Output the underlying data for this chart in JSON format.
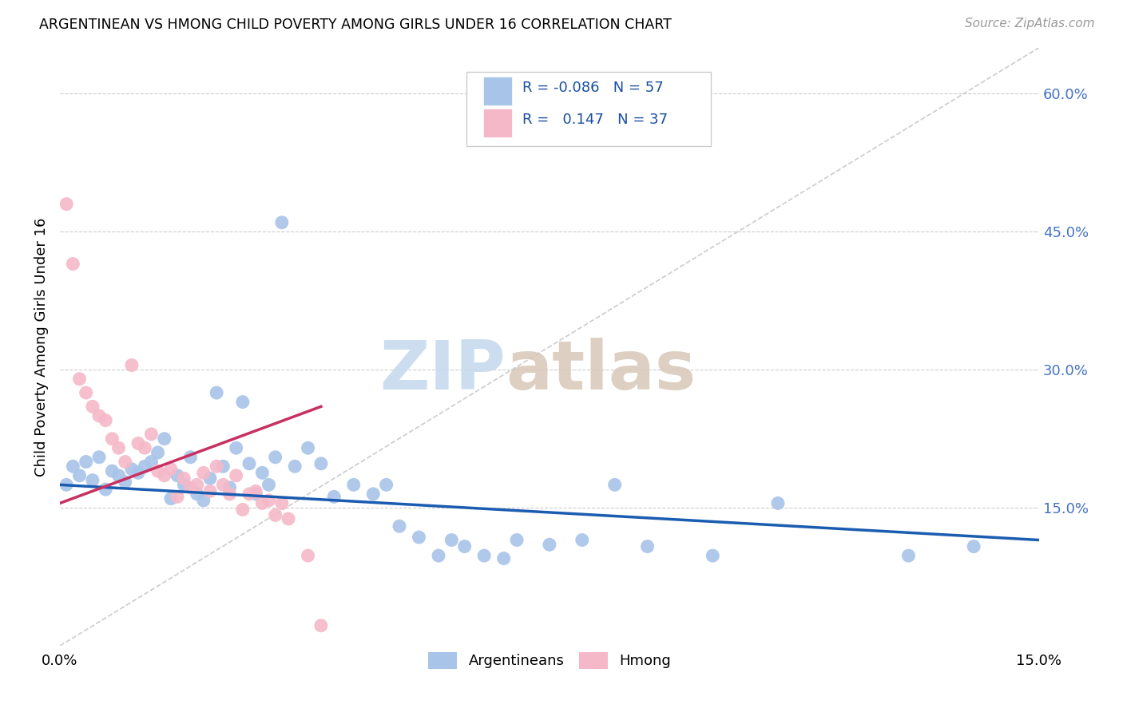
{
  "title": "ARGENTINEAN VS HMONG CHILD POVERTY AMONG GIRLS UNDER 16 CORRELATION CHART",
  "source": "Source: ZipAtlas.com",
  "ylabel": "Child Poverty Among Girls Under 16",
  "xlim": [
    0.0,
    0.15
  ],
  "ylim": [
    0.0,
    0.65
  ],
  "blue_color": "#A8C4E8",
  "pink_color": "#F5B8C8",
  "blue_line_color": "#1A5CB0",
  "pink_line_color": "#C83060",
  "diagonal_color": "#CCCCCC",
  "background_color": "#FFFFFF",
  "watermark_zip": "ZIP",
  "watermark_atlas": "atlas",
  "argentinean_x": [
    0.001,
    0.002,
    0.003,
    0.004,
    0.005,
    0.006,
    0.007,
    0.008,
    0.009,
    0.01,
    0.011,
    0.012,
    0.013,
    0.014,
    0.015,
    0.016,
    0.017,
    0.018,
    0.019,
    0.02,
    0.021,
    0.022,
    0.023,
    0.024,
    0.025,
    0.026,
    0.027,
    0.028,
    0.029,
    0.03,
    0.031,
    0.032,
    0.033,
    0.034,
    0.036,
    0.038,
    0.04,
    0.042,
    0.045,
    0.048,
    0.05,
    0.052,
    0.055,
    0.058,
    0.06,
    0.062,
    0.065,
    0.068,
    0.07,
    0.075,
    0.08,
    0.085,
    0.09,
    0.1,
    0.11,
    0.13,
    0.14
  ],
  "argentinean_y": [
    0.175,
    0.195,
    0.185,
    0.2,
    0.18,
    0.205,
    0.17,
    0.19,
    0.185,
    0.178,
    0.192,
    0.188,
    0.195,
    0.2,
    0.21,
    0.225,
    0.16,
    0.185,
    0.175,
    0.205,
    0.165,
    0.158,
    0.182,
    0.275,
    0.195,
    0.172,
    0.215,
    0.265,
    0.198,
    0.165,
    0.188,
    0.175,
    0.205,
    0.46,
    0.195,
    0.215,
    0.198,
    0.162,
    0.175,
    0.165,
    0.175,
    0.13,
    0.118,
    0.098,
    0.115,
    0.108,
    0.098,
    0.095,
    0.115,
    0.11,
    0.115,
    0.175,
    0.108,
    0.098,
    0.155,
    0.098,
    0.108
  ],
  "hmong_x": [
    0.001,
    0.002,
    0.003,
    0.004,
    0.005,
    0.006,
    0.007,
    0.008,
    0.009,
    0.01,
    0.011,
    0.012,
    0.013,
    0.014,
    0.015,
    0.016,
    0.017,
    0.018,
    0.019,
    0.02,
    0.021,
    0.022,
    0.023,
    0.024,
    0.025,
    0.026,
    0.027,
    0.028,
    0.029,
    0.03,
    0.031,
    0.032,
    0.033,
    0.034,
    0.035,
    0.038,
    0.04
  ],
  "hmong_y": [
    0.48,
    0.415,
    0.29,
    0.275,
    0.26,
    0.25,
    0.245,
    0.225,
    0.215,
    0.2,
    0.305,
    0.22,
    0.215,
    0.23,
    0.19,
    0.185,
    0.192,
    0.162,
    0.182,
    0.172,
    0.175,
    0.188,
    0.168,
    0.195,
    0.175,
    0.165,
    0.185,
    0.148,
    0.165,
    0.168,
    0.155,
    0.158,
    0.142,
    0.155,
    0.138,
    0.098,
    0.022
  ],
  "blue_trend_x": [
    0.0,
    0.15
  ],
  "blue_trend_y": [
    0.175,
    0.115
  ],
  "pink_trend_x": [
    0.0,
    0.04
  ],
  "pink_trend_y": [
    0.155,
    0.26
  ]
}
